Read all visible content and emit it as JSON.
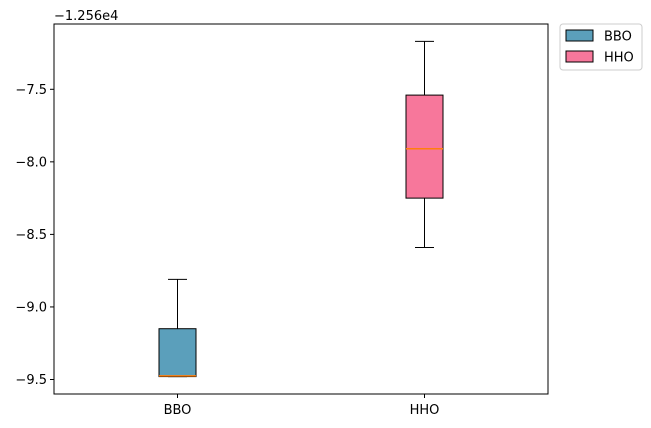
{
  "chart_data": {
    "type": "box",
    "offset_label": "−1.256e4",
    "categories": [
      "BBO",
      "HHO"
    ],
    "y_ticks": [
      -9.5,
      -9.0,
      -8.5,
      -8.0,
      -7.5
    ],
    "y_tick_labels": [
      "−9.5",
      "−9.0",
      "−8.5",
      "−8.0",
      "−7.5"
    ],
    "ylim": [
      -9.6,
      -7.05
    ],
    "grid": false,
    "legend_position": "outside-top-right",
    "series": [
      {
        "name": "BBO",
        "color": "#5b9fbb",
        "whisker_low": -9.48,
        "q1": -9.48,
        "median": -9.475,
        "q3": -9.15,
        "whisker_high": -8.81
      },
      {
        "name": "HHO",
        "color": "#f7779b",
        "whisker_low": -8.59,
        "q1": -8.25,
        "median": -7.91,
        "q3": -7.54,
        "whisker_high": -7.17
      }
    ],
    "median_color": "#ff7f0e"
  }
}
